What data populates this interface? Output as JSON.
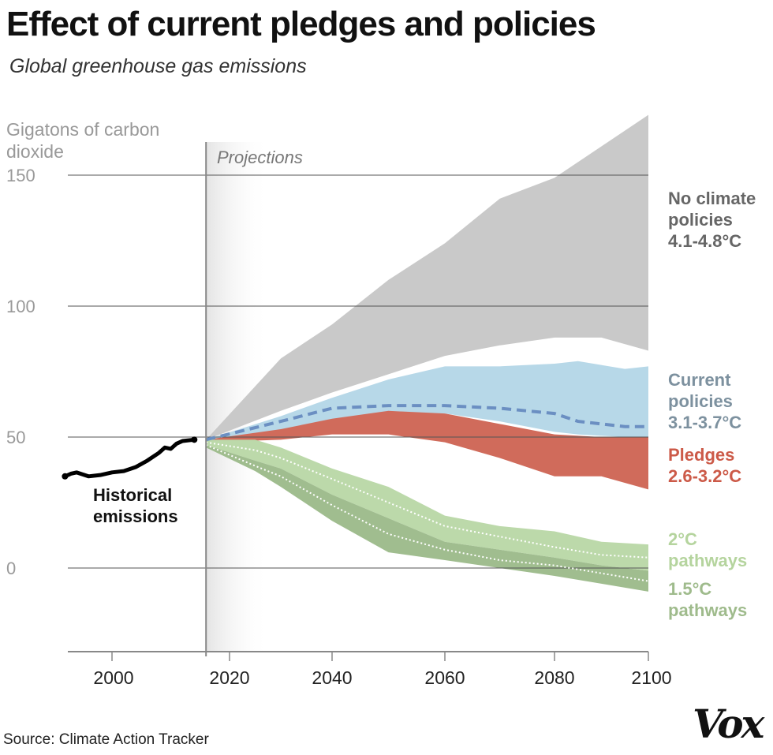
{
  "header": {
    "title": "Effect of current pledges and policies",
    "subtitle": "Global greenhouse gas emissions"
  },
  "source": "Source: Climate Action Tracker",
  "logo": "Vox",
  "chart_data": {
    "type": "area",
    "title": "Effect of current pledges and policies",
    "subtitle": "Global greenhouse gas emissions",
    "ylabel": "Gigatons of carbon dioxide",
    "xlabel": "",
    "xticks": [
      "2000",
      "2020",
      "2040",
      "2060",
      "2080",
      "2100"
    ],
    "yticks": [
      "0",
      "50",
      "100",
      "150"
    ],
    "ylim": [
      -32,
      175
    ],
    "xlim": [
      1992,
      2100
    ],
    "grid": true,
    "projection_label": "Projections",
    "projection_start": 2016,
    "colors": {
      "no_policy": "#c9c9c9",
      "current": "#b7d8e8",
      "current_median": "#6b8fc2",
      "pledges": "#d06b5b",
      "two_c": "#bcd9aa",
      "one_five": "#a0bd8f",
      "historical": "#000000"
    },
    "historical": {
      "label": "Historical emissions",
      "x": [
        1992,
        1993,
        1994,
        1996,
        1998,
        2000,
        2002,
        2004,
        2006,
        2008,
        2009,
        2010,
        2011,
        2012,
        2014
      ],
      "y": [
        35,
        36,
        36.5,
        35,
        35.5,
        36.5,
        37,
        38.5,
        41,
        44,
        46,
        45.5,
        47.5,
        48.5,
        49
      ]
    },
    "series": [
      {
        "name": "No climate policies 4.1-4.8°C",
        "label": [
          "No climate",
          "policies",
          "4.1-4.8°C"
        ],
        "color": "#666666",
        "x": [
          2016,
          2030,
          2040,
          2050,
          2060,
          2070,
          2080,
          2090,
          2100
        ],
        "upper": [
          49,
          80,
          93,
          110,
          124,
          141,
          149,
          161,
          173
        ],
        "lower": [
          49,
          60,
          67,
          74,
          81,
          85,
          88,
          88,
          83
        ]
      },
      {
        "name": "Current policies 3.1-3.7°C",
        "label": [
          "Current",
          "policies",
          "3.1-3.7°C"
        ],
        "color": "#7d919f",
        "x": [
          2016,
          2030,
          2040,
          2050,
          2060,
          2070,
          2080,
          2085,
          2095,
          2100
        ],
        "upper": [
          49,
          58,
          65,
          72,
          77,
          77,
          78,
          79,
          76,
          77
        ],
        "lower": [
          49,
          52,
          55,
          58,
          59,
          56,
          52,
          51,
          50,
          50
        ],
        "median": [
          49,
          56,
          61,
          62,
          62,
          61,
          59,
          56,
          54,
          54
        ]
      },
      {
        "name": "Pledges 2.6-3.2°C",
        "label": [
          "Pledges",
          "2.6-3.2°C"
        ],
        "color": "#cc5a48",
        "x": [
          2016,
          2030,
          2040,
          2050,
          2060,
          2070,
          2080,
          2090,
          2100
        ],
        "upper": [
          49,
          53,
          57,
          60,
          59,
          55,
          51,
          50,
          50
        ],
        "lower": [
          48,
          49,
          51,
          51,
          48,
          42,
          35,
          35,
          30
        ]
      },
      {
        "name": "2°C pathways",
        "label": [
          "2°C",
          "pathways"
        ],
        "color": "#b5d49e",
        "x": [
          2016,
          2025,
          2030,
          2040,
          2050,
          2060,
          2070,
          2080,
          2090,
          2100
        ],
        "upper": [
          49,
          49,
          46,
          38,
          31,
          20,
          16,
          14,
          10,
          9
        ],
        "lower": [
          47,
          41,
          38,
          28,
          19,
          10,
          7,
          4,
          1,
          -1
        ],
        "median": [
          48,
          45,
          42,
          34,
          25,
          16,
          12,
          8,
          5,
          4
        ]
      },
      {
        "name": "1.5°C pathways",
        "label": [
          "1.5°C",
          "pathways"
        ],
        "color": "#9fbb8c",
        "x": [
          2016,
          2025,
          2030,
          2040,
          2050,
          2060,
          2070,
          2080,
          2090,
          2100
        ],
        "upper": [
          47,
          41,
          38,
          28,
          19,
          10,
          7,
          4,
          1,
          -1
        ],
        "lower": [
          46,
          37,
          31,
          18,
          6,
          3,
          0,
          -3,
          -6,
          -9
        ],
        "median": [
          47,
          39,
          35,
          24,
          13,
          7,
          3,
          1,
          -2,
          -5
        ]
      }
    ]
  }
}
